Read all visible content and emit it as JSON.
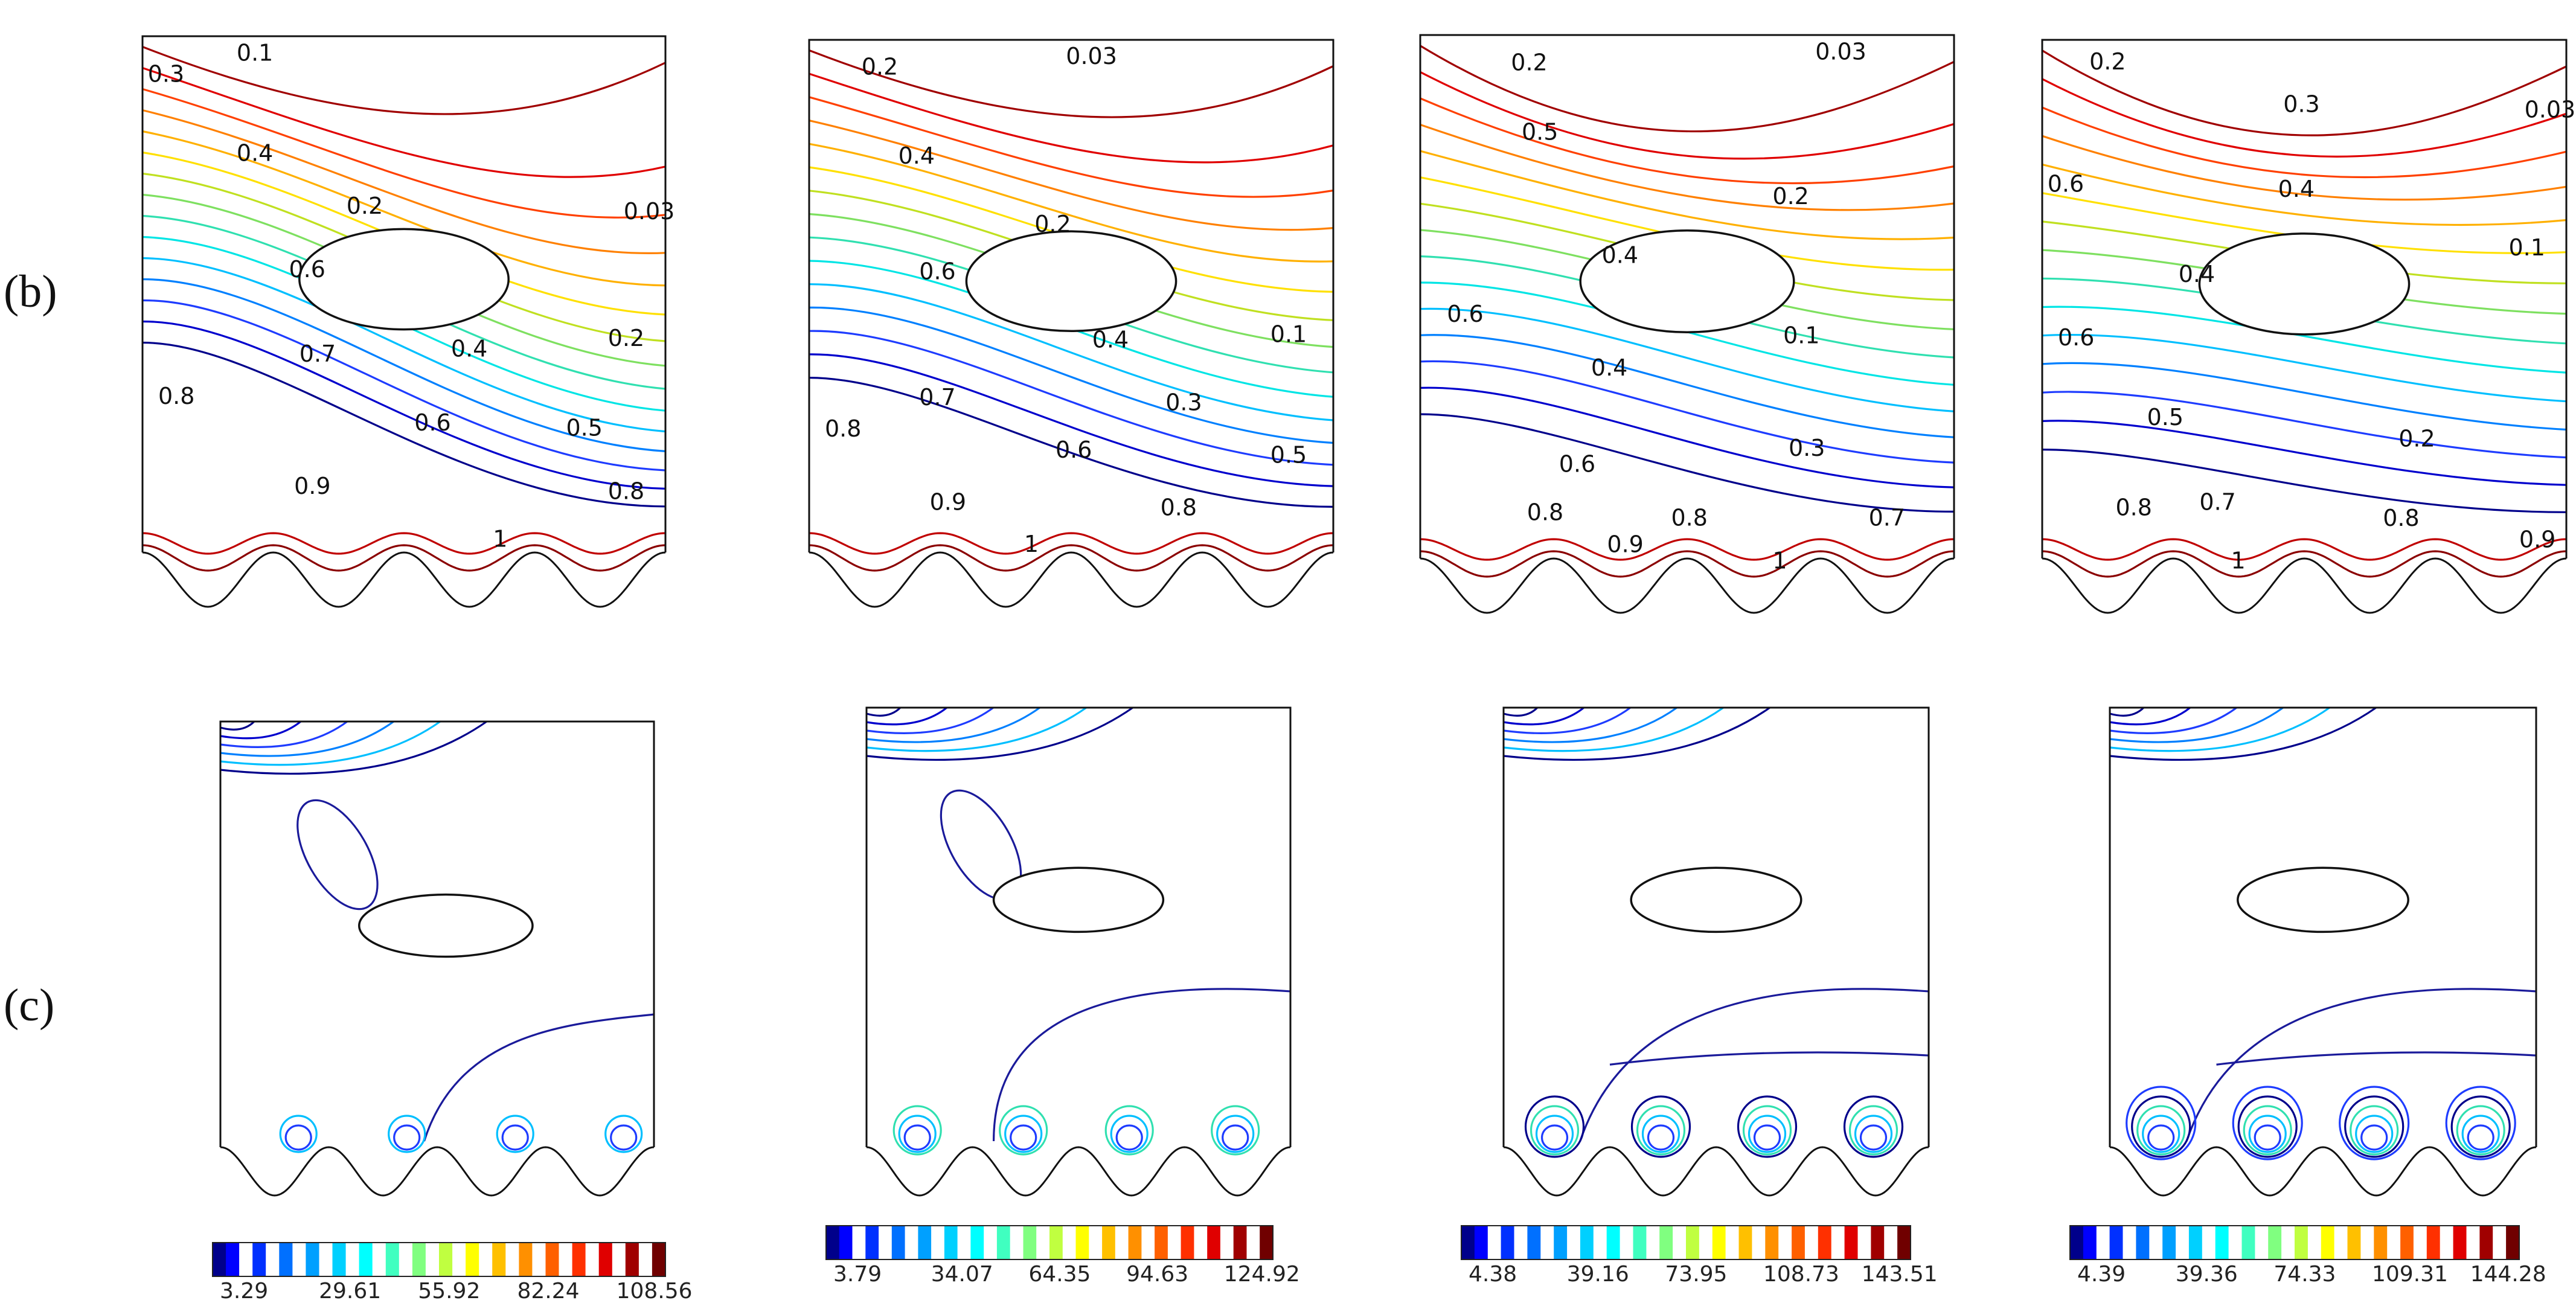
{
  "row_labels": [
    "(b)",
    "(c)"
  ],
  "panels_b": [
    {
      "labels": [
        "0.1",
        "0.3",
        "0.4",
        "0.2",
        "0.03",
        "0.6",
        "0.7",
        "0.8",
        "0.4",
        "0.2",
        "0.6",
        "0.5",
        "0.9",
        "0.8",
        "1"
      ]
    },
    {
      "labels": [
        "0.2",
        "0.03",
        "0.4",
        "0.2",
        "0.6",
        "0.1",
        "0.4",
        "0.7",
        "0.3",
        "0.8",
        "0.6",
        "0.5",
        "0.9",
        "0.8",
        "1"
      ]
    },
    {
      "labels": [
        "0.2",
        "0.03",
        "0.5",
        "0.2",
        "0.4",
        "0.6",
        "0.1",
        "0.4",
        "0.3",
        "0.6",
        "0.8",
        "0.8",
        "0.7",
        "0.9",
        "1"
      ]
    },
    {
      "labels": [
        "0.2",
        "0.3",
        "0.03",
        "0.6",
        "0.4",
        "0.1",
        "0.4",
        "0.6",
        "0.5",
        "0.2",
        "0.8",
        "0.7",
        "0.8",
        "0.9",
        "1"
      ]
    }
  ],
  "colorbars": [
    {
      "ticks": [
        "3.29",
        "29.61",
        "55.92",
        "82.24",
        "108.56"
      ]
    },
    {
      "ticks": [
        "3.79",
        "34.07",
        "64.35",
        "94.63",
        "124.92"
      ]
    },
    {
      "ticks": [
        "4.38",
        "39.16",
        "73.95",
        "108.73",
        "143.51"
      ]
    },
    {
      "ticks": [
        "4.39",
        "39.36",
        "74.33",
        "109.31",
        "144.28"
      ]
    }
  ],
  "colors": {
    "levels": [
      "#00008b",
      "#0000cd",
      "#1e3cff",
      "#0080ff",
      "#00bfff",
      "#00e5e5",
      "#30e0b0",
      "#7ee060",
      "#c0e020",
      "#ffe000",
      "#ffb000",
      "#ff8000",
      "#ff4000",
      "#e00000",
      "#a00000"
    ],
    "frame": "#111111"
  }
}
